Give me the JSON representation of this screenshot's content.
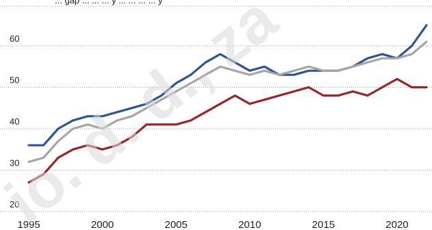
{
  "chart_data": {
    "type": "line",
    "title": "",
    "xlabel": "",
    "ylabel": "",
    "x": [
      1995,
      1996,
      1997,
      1998,
      1999,
      2000,
      2001,
      2002,
      2003,
      2004,
      2005,
      2006,
      2007,
      2008,
      2009,
      2010,
      2011,
      2012,
      2013,
      2014,
      2015,
      2016,
      2017,
      2018,
      2019,
      2020,
      2021,
      2022
    ],
    "xticks": [
      "1995",
      "2000",
      "2005",
      "2010",
      "2015",
      "2020"
    ],
    "yticks": [
      "20",
      "30",
      "40",
      "50",
      "60"
    ],
    "ylim": [
      20,
      66
    ],
    "xlim": [
      1995,
      2022
    ],
    "grid": true,
    "legend": "none",
    "series": [
      {
        "color": "#2e5591",
        "values": [
          36,
          36,
          40,
          42,
          43,
          43,
          44,
          45,
          46,
          48,
          51,
          53,
          56,
          58,
          56,
          54,
          55,
          53,
          53,
          54,
          54,
          54,
          55,
          57,
          58,
          57,
          60,
          65
        ]
      },
      {
        "color": "#a6a6a6",
        "values": [
          32,
          33,
          37,
          40,
          41,
          40,
          42,
          43,
          45,
          47,
          49,
          51,
          53,
          55,
          54,
          53,
          54,
          53,
          54,
          55,
          54,
          54,
          55,
          56,
          57,
          57,
          58,
          61
        ]
      },
      {
        "color": "#9b2526",
        "values": [
          27,
          29,
          33,
          35,
          36,
          35,
          36,
          38,
          41,
          41,
          41,
          42,
          44,
          46,
          48,
          46,
          47,
          48,
          49,
          50,
          48,
          48,
          49,
          48,
          50,
          52,
          50,
          50
        ]
      }
    ]
  },
  "watermark": {
    "text": "io. d. d., za"
  },
  "top_partial_text": "... gap ... ... ... y ... ... ... ... y"
}
